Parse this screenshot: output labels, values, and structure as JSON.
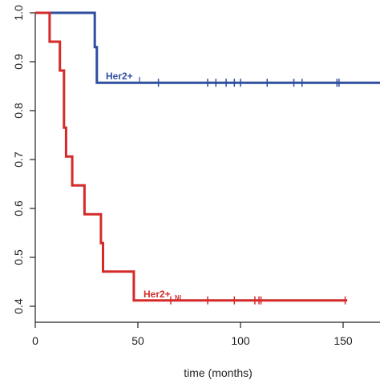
{
  "chart_data": {
    "type": "line",
    "subtype": "kaplan-meier step",
    "title": "",
    "xlabel": "time (months)",
    "ylabel": "",
    "xlim": [
      0,
      170
    ],
    "ylim": [
      0.4,
      1.0
    ],
    "xticks": [
      0,
      50,
      100,
      150
    ],
    "xtick_labels": [
      "0",
      "50",
      "100",
      "150"
    ],
    "yticks": [
      0.4,
      0.5,
      0.6,
      0.7,
      0.8,
      0.9,
      1.0
    ],
    "ytick_labels": [
      "0.4",
      "0.5",
      "0.6",
      "0.7",
      "0.8",
      "0.9",
      "1.0"
    ],
    "grid": false,
    "series": [
      {
        "name": "Her2+",
        "subscript": "I",
        "color": "#2e4e9e",
        "steps": [
          [
            0,
            1.0
          ],
          [
            29,
            1.0
          ],
          [
            29,
            0.93
          ],
          [
            30,
            0.93
          ],
          [
            30,
            0.857
          ],
          [
            170,
            0.857
          ]
        ],
        "censored_x": [
          60,
          84,
          88,
          93,
          97,
          100,
          113,
          126,
          130,
          147,
          148
        ]
      },
      {
        "name": "Her2+",
        "subscript": "NI",
        "color": "#d42a2a",
        "steps": [
          [
            0,
            1.0
          ],
          [
            7,
            1.0
          ],
          [
            7,
            0.941
          ],
          [
            12,
            0.941
          ],
          [
            12,
            0.882
          ],
          [
            14,
            0.882
          ],
          [
            14,
            0.765
          ],
          [
            15,
            0.765
          ],
          [
            15,
            0.706
          ],
          [
            18,
            0.706
          ],
          [
            18,
            0.647
          ],
          [
            24,
            0.647
          ],
          [
            24,
            0.588
          ],
          [
            32,
            0.588
          ],
          [
            32,
            0.529
          ],
          [
            33,
            0.529
          ],
          [
            33,
            0.471
          ],
          [
            48,
            0.471
          ],
          [
            48,
            0.412
          ],
          [
            152,
            0.412
          ]
        ],
        "censored_x": [
          66,
          84,
          97,
          107,
          109,
          110,
          151
        ]
      }
    ]
  }
}
